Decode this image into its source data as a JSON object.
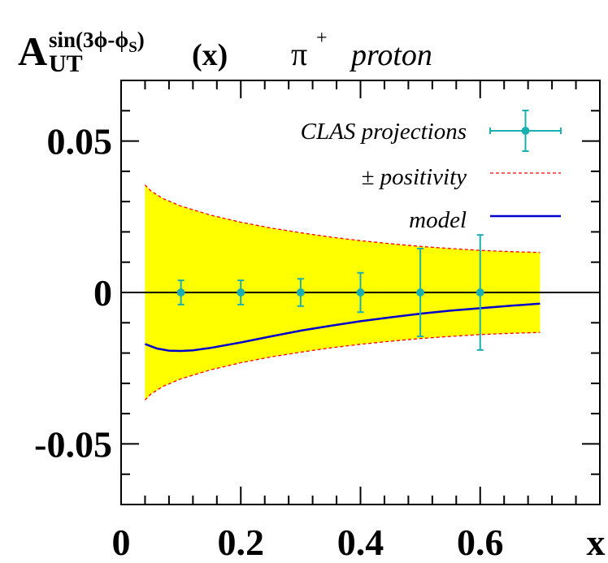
{
  "title": {
    "main": "A",
    "superscript": "sin(3ϕ-ϕ",
    "superscript_sub": "S",
    "superscript_close": ")",
    "subscript": "UT",
    "arg": "(x)",
    "particle": "π",
    "particle_charge": "+",
    "target": "proton"
  },
  "chart_data": {
    "type": "scatter",
    "xlabel": "x",
    "ylabel": "",
    "xlim": [
      0,
      0.8
    ],
    "ylim": [
      -0.07,
      0.07
    ],
    "x_ticks": [
      {
        "value": 0,
        "label": "0"
      },
      {
        "value": 0.2,
        "label": "0.2"
      },
      {
        "value": 0.4,
        "label": "0.4"
      },
      {
        "value": 0.6,
        "label": "0.6"
      }
    ],
    "y_ticks": [
      {
        "value": 0.05,
        "label": "0.05"
      },
      {
        "value": 0,
        "label": "0"
      },
      {
        "value": -0.05,
        "label": "-0.05"
      }
    ],
    "legend": {
      "placement": "top-right",
      "entries": [
        {
          "name": "CLAS projections",
          "style": "errorbar"
        },
        {
          "name": "± positivity",
          "style": "dashed"
        },
        {
          "name": "model",
          "style": "line"
        }
      ]
    },
    "series": [
      {
        "name": "CLAS projections",
        "kind": "points",
        "x": [
          0.1,
          0.2,
          0.3,
          0.4,
          0.5,
          0.6
        ],
        "y": [
          0,
          0,
          0,
          0,
          0,
          0
        ],
        "yerr": [
          0.004,
          0.004,
          0.0045,
          0.0065,
          0.0145,
          0.019
        ],
        "color": "#1ab0b0"
      },
      {
        "name": "± positivity",
        "kind": "band",
        "x": [
          0.04,
          0.05,
          0.07,
          0.1,
          0.15,
          0.2,
          0.25,
          0.3,
          0.35,
          0.4,
          0.45,
          0.5,
          0.55,
          0.6,
          0.65,
          0.7
        ],
        "upper": [
          0.0355,
          0.0335,
          0.031,
          0.0285,
          0.0255,
          0.0232,
          0.0213,
          0.0197,
          0.0183,
          0.0171,
          0.0161,
          0.0152,
          0.0145,
          0.0139,
          0.0135,
          0.0132
        ],
        "fill": "#ffff00",
        "edge": "#ff0000"
      },
      {
        "name": "model",
        "kind": "line",
        "x": [
          0.04,
          0.06,
          0.08,
          0.1,
          0.12,
          0.15,
          0.2,
          0.25,
          0.3,
          0.35,
          0.4,
          0.45,
          0.5,
          0.55,
          0.6,
          0.65,
          0.7
        ],
        "y": [
          -0.017,
          -0.0185,
          -0.0192,
          -0.0193,
          -0.0191,
          -0.0183,
          -0.0165,
          -0.0145,
          -0.0126,
          -0.011,
          -0.0095,
          -0.0082,
          -0.007,
          -0.006,
          -0.0052,
          -0.0044,
          -0.0037
        ],
        "color": "#0000cc"
      }
    ],
    "zero_line": true
  }
}
